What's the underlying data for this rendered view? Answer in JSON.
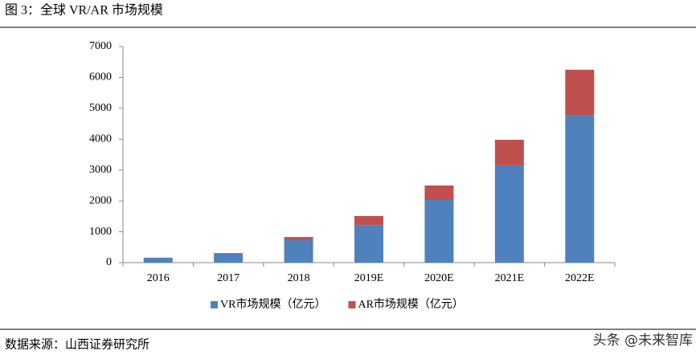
{
  "chart_data": {
    "type": "stacked-bar",
    "title": "图 3：全球 VR/AR 市场规模",
    "categories": [
      "2016",
      "2017",
      "2018",
      "2019E",
      "2020E",
      "2021E",
      "2022E"
    ],
    "series": [
      {
        "name": "VR市场规模（亿元）",
        "color": "#4f81bd",
        "values": [
          160,
          310,
          730,
          1220,
          2030,
          3150,
          4770
        ]
      },
      {
        "name": "AR市场规模（亿元）",
        "color": "#c0504d",
        "values": [
          0,
          0,
          100,
          290,
          470,
          830,
          1480
        ]
      }
    ],
    "ylim": [
      0,
      7000
    ],
    "yticks": [
      0,
      1000,
      2000,
      3000,
      4000,
      5000,
      6000,
      7000
    ],
    "grid": false,
    "legend": "bottom",
    "source": "数据来源：山西证券研究所",
    "watermark": "头条 @未来智库"
  }
}
